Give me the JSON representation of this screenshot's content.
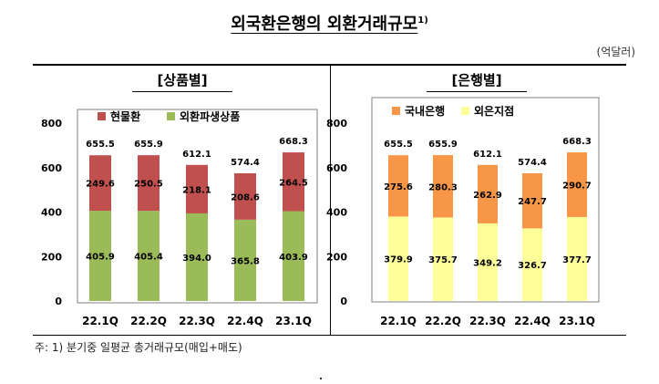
{
  "title": "외국환은행의 외환거래규모",
  "title_sup": "1)",
  "unit": "(억달러)",
  "footnote": "주: 1) 분기중 일평균 총거래규모(매입+매도)",
  "chart_data": [
    {
      "type": "bar",
      "stacked": true,
      "panel_title": "[상품별]",
      "categories": [
        "22.1Q",
        "22.2Q",
        "22.3Q",
        "22.4Q",
        "23.1Q"
      ],
      "series": [
        {
          "name": "외환파생상품",
          "values": [
            405.9,
            405.4,
            394.0,
            365.8,
            403.9
          ],
          "color": "#9bbb59"
        },
        {
          "name": "현물환",
          "values": [
            249.6,
            250.5,
            218.1,
            208.6,
            264.5
          ],
          "color": "#c0504d"
        }
      ],
      "totals": [
        655.5,
        655.9,
        612.1,
        574.4,
        668.3
      ],
      "series_labels": [
        [
          "405.9",
          "405.4",
          "394.0",
          "365.8",
          "403.9"
        ],
        [
          "249.6",
          "250.5",
          "218.1",
          "208.6",
          "264.5"
        ]
      ],
      "total_labels": [
        "655.5",
        "655.9",
        "612.1",
        "574.4",
        "668.3"
      ],
      "ylim": [
        0,
        800
      ],
      "yticks": [
        "0",
        "200",
        "400",
        "600",
        "800"
      ],
      "legend_position": "top-left",
      "grid": false
    },
    {
      "type": "bar",
      "stacked": true,
      "panel_title": "[은행별]",
      "categories": [
        "22.1Q",
        "22.2Q",
        "22.3Q",
        "22.4Q",
        "23.1Q"
      ],
      "series": [
        {
          "name": "외은지점",
          "values": [
            379.9,
            375.7,
            349.2,
            326.7,
            377.7
          ],
          "color": "#ffff99"
        },
        {
          "name": "국내은행",
          "values": [
            275.6,
            280.3,
            262.9,
            247.7,
            290.7
          ],
          "color": "#f79646"
        }
      ],
      "totals": [
        655.5,
        655.9,
        612.1,
        574.4,
        668.3
      ],
      "series_labels": [
        [
          "379.9",
          "375.7",
          "349.2",
          "326.7",
          "377.7"
        ],
        [
          "275.6",
          "280.3",
          "262.9",
          "247.7",
          "290.7"
        ]
      ],
      "total_labels": [
        "655.5",
        "655.9",
        "612.1",
        "574.4",
        "668.3"
      ],
      "ylim": [
        0,
        800
      ],
      "yticks": [
        "0",
        "200",
        "400",
        "600",
        "800"
      ],
      "legend_position": "top-left",
      "grid": false
    }
  ]
}
